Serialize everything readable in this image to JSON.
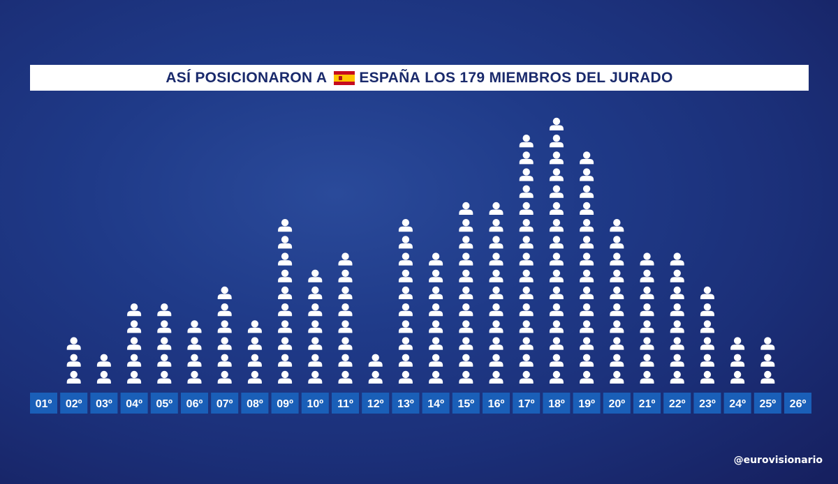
{
  "title": {
    "prefix": "ASÍ POSICIONARON A",
    "country": "ESPAÑA",
    "suffix": "LOS 179 MIEMBROS DEL JURADO"
  },
  "credit": "@eurovisionario",
  "colors": {
    "person": "#ffffff",
    "label_bg": "#1a5fb8",
    "label_text": "#ffffff"
  },
  "icon": "person-icon",
  "chart_data": {
    "type": "bar",
    "categories": [
      "01º",
      "02º",
      "03º",
      "04º",
      "05º",
      "06º",
      "07º",
      "08º",
      "09º",
      "10º",
      "11º",
      "12º",
      "13º",
      "14º",
      "15º",
      "16º",
      "17º",
      "18º",
      "19º",
      "20º",
      "21º",
      "22º",
      "23º",
      "24º",
      "25º",
      "26º"
    ],
    "values": [
      0,
      3,
      2,
      5,
      5,
      4,
      6,
      4,
      10,
      7,
      8,
      2,
      10,
      8,
      11,
      11,
      15,
      16,
      14,
      10,
      8,
      8,
      6,
      3,
      3,
      0
    ],
    "title": "ASÍ POSICIONARON A ESPAÑA LOS 179 MIEMBROS DEL JURADO",
    "xlabel": "",
    "ylabel": "",
    "ylim": [
      0,
      16
    ],
    "grid": false
  }
}
